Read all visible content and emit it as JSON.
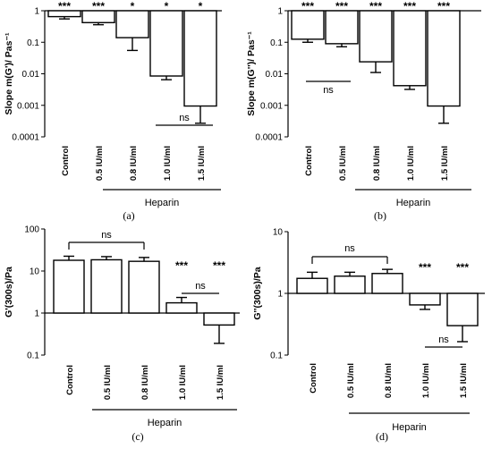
{
  "chart_data": [
    {
      "panel_label": "(a)",
      "type": "bar",
      "ylabel": "Slope m(G')/ Pas⁻¹",
      "yscale": "log",
      "ylim": [
        0.0001,
        1
      ],
      "yticks": [
        {
          "v": 1,
          "t": "1"
        },
        {
          "v": 0.1,
          "t": "0.1"
        },
        {
          "v": 0.01,
          "t": "0.01"
        },
        {
          "v": 0.001,
          "t": "0.001"
        },
        {
          "v": 0.0001,
          "t": "0.0001"
        }
      ],
      "categories": [
        "Control",
        "0.5 IU/ml",
        "0.8 IU/ml",
        "1.0 IU/ml",
        "1.5 IU/ml"
      ],
      "values": [
        0.65,
        0.42,
        0.14,
        0.0085,
        0.00095
      ],
      "error_low": [
        0.55,
        0.36,
        0.055,
        0.0065,
        0.00027
      ],
      "significance": [
        "***",
        "***",
        "*",
        "*",
        "*"
      ],
      "ns_brackets": [
        {
          "from": 3,
          "to": 4,
          "label": "ns"
        }
      ],
      "group_label": "Heparin",
      "group_span": [
        1,
        4
      ]
    },
    {
      "panel_label": "(b)",
      "type": "bar",
      "ylabel": "Slope m(G'')/ Pas⁻¹",
      "yscale": "log",
      "ylim": [
        0.0001,
        1
      ],
      "yticks": [
        {
          "v": 1,
          "t": "1"
        },
        {
          "v": 0.1,
          "t": "0.1"
        },
        {
          "v": 0.01,
          "t": "0.01"
        },
        {
          "v": 0.001,
          "t": "0.001"
        },
        {
          "v": 0.0001,
          "t": "0.0001"
        }
      ],
      "categories": [
        "Control",
        "0.5 IU/ml",
        "0.8 IU/ml",
        "1.0 IU/ml",
        "1.5 IU/ml"
      ],
      "values": [
        0.125,
        0.09,
        0.024,
        0.0042,
        0.00095
      ],
      "error_low": [
        0.1,
        0.072,
        0.011,
        0.0032,
        0.00027
      ],
      "significance": [
        "***",
        "***",
        "***",
        "***",
        "***"
      ],
      "ns_brackets": [
        {
          "from": 0,
          "to": 1,
          "label": "ns"
        }
      ],
      "group_label": "Heparin",
      "group_span": [
        1,
        4
      ]
    },
    {
      "panel_label": "(c)",
      "type": "bar",
      "ylabel": "G'(300s)/Pa",
      "yscale": "log",
      "ylim": [
        0.1,
        100
      ],
      "baseline": 1,
      "yticks": [
        {
          "v": 100,
          "t": "100"
        },
        {
          "v": 10,
          "t": "10"
        },
        {
          "v": 1,
          "t": "1"
        },
        {
          "v": 0.1,
          "t": "0.1"
        }
      ],
      "categories": [
        "Control",
        "0.5 IU/ml",
        "0.8 IU/ml",
        "1.0 IU/ml",
        "1.5 IU/ml"
      ],
      "values": [
        18,
        18.5,
        17,
        1.75,
        0.52
      ],
      "error_high": [
        22.5,
        22,
        21,
        2.35,
        null
      ],
      "error_low": [
        null,
        null,
        null,
        null,
        0.19
      ],
      "significance": [
        "",
        "",
        "",
        "***",
        "***"
      ],
      "ns_brackets": [
        {
          "from": 0,
          "to": 2,
          "label": "ns"
        },
        {
          "from": 3,
          "to": 4,
          "label": "ns"
        }
      ],
      "group_label": "Heparin",
      "group_span": [
        1,
        4
      ]
    },
    {
      "panel_label": "(d)",
      "type": "bar",
      "ylabel": "G''(300s)/Pa",
      "yscale": "log",
      "ylim": [
        0.1,
        10
      ],
      "baseline": 1,
      "yticks": [
        {
          "v": 10,
          "t": "10"
        },
        {
          "v": 1,
          "t": "1"
        },
        {
          "v": 0.1,
          "t": "0.1"
        }
      ],
      "categories": [
        "Control",
        "0.5 IU/ml",
        "0.8 IU/ml",
        "1.0 IU/ml",
        "1.5 IU/ml"
      ],
      "values": [
        1.75,
        1.9,
        2.1,
        0.65,
        0.3
      ],
      "error_high": [
        2.2,
        2.2,
        2.45,
        null,
        null
      ],
      "error_low": [
        null,
        null,
        null,
        0.55,
        0.165
      ],
      "significance": [
        "",
        "",
        "",
        "***",
        "***"
      ],
      "ns_brackets": [
        {
          "from": 0,
          "to": 2,
          "label": "ns"
        },
        {
          "from": 3,
          "to": 4,
          "label": "ns"
        }
      ],
      "group_label": "Heparin",
      "group_span": [
        1,
        4
      ]
    }
  ]
}
